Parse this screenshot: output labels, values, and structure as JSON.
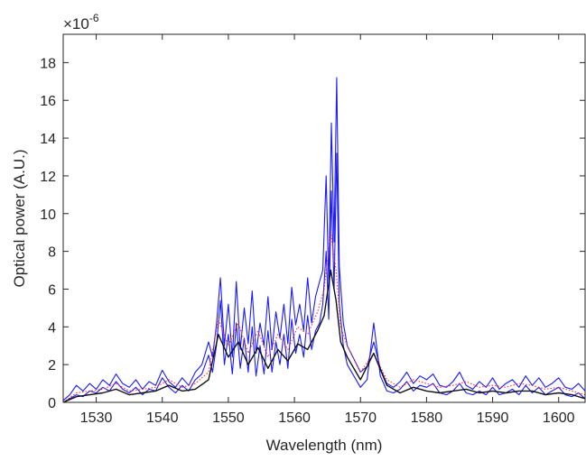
{
  "chart_data": {
    "type": "line",
    "title": "",
    "xlabel": "Wavelength (nm)",
    "ylabel": "Optical power (A.U.)",
    "y_exponent_label": "×10",
    "y_exponent_power": "-6",
    "xlim": [
      1525,
      1604
    ],
    "ylim": [
      0,
      19.5
    ],
    "xticks": [
      1530,
      1540,
      1550,
      1560,
      1570,
      1580,
      1590,
      1600
    ],
    "yticks": [
      0,
      2,
      4,
      6,
      8,
      10,
      12,
      14,
      16,
      18
    ],
    "grid": false,
    "legend": "none",
    "colors": {
      "blue": "#1a1aff",
      "red": "#ff2a2a",
      "black": "#111111",
      "axis": "#262626"
    },
    "series": [
      {
        "color": "blue",
        "style": "solid",
        "x": [
          1525,
          1526,
          1527,
          1528,
          1529,
          1530,
          1531,
          1532,
          1533,
          1534,
          1535,
          1536,
          1537,
          1538,
          1539,
          1540,
          1541,
          1542,
          1543,
          1544,
          1545,
          1546,
          1547,
          1547.6,
          1548.2,
          1548.8,
          1549.4,
          1550,
          1550.6,
          1551.2,
          1551.8,
          1552.4,
          1553,
          1553.6,
          1554.2,
          1554.8,
          1555.4,
          1556,
          1556.6,
          1557.2,
          1557.8,
          1558.4,
          1559,
          1559.6,
          1560.2,
          1560.8,
          1561.4,
          1562,
          1562.6,
          1563.2,
          1563.8,
          1564.3,
          1564.8,
          1565.2,
          1565.6,
          1566,
          1566.4,
          1566.8,
          1567.4,
          1568,
          1569,
          1570,
          1571,
          1572,
          1573,
          1574,
          1575,
          1576,
          1577,
          1578,
          1579,
          1580,
          1581,
          1582,
          1583,
          1584,
          1585,
          1586,
          1587,
          1588,
          1589,
          1590,
          1591,
          1592,
          1593,
          1594,
          1595,
          1596,
          1597,
          1598,
          1599,
          1600,
          1601,
          1602,
          1603,
          1604
        ],
        "y": [
          0.1,
          0.4,
          0.9,
          0.6,
          1.0,
          0.7,
          1.2,
          0.9,
          1.5,
          1.0,
          0.8,
          1.2,
          0.7,
          1.1,
          0.9,
          1.7,
          1.1,
          0.8,
          1.3,
          0.9,
          1.6,
          2.0,
          3.2,
          2.4,
          4.1,
          6.6,
          3.0,
          5.2,
          2.4,
          6.4,
          2.8,
          5.0,
          3.1,
          5.9,
          2.6,
          4.2,
          3.0,
          5.6,
          2.8,
          4.8,
          3.4,
          5.2,
          3.1,
          6.1,
          4.1,
          5.2,
          3.8,
          6.6,
          4.2,
          5.6,
          6.4,
          7.0,
          12.0,
          6.2,
          14.8,
          8.5,
          17.2,
          7.2,
          4.2,
          3.0,
          2.3,
          1.6,
          1.9,
          3.2,
          1.8,
          1.0,
          0.8,
          1.1,
          1.6,
          1.0,
          1.4,
          1.2,
          1.5,
          0.9,
          0.8,
          1.1,
          1.6,
          0.9,
          0.7,
          1.1,
          0.8,
          1.3,
          0.7,
          1.0,
          1.2,
          0.8,
          1.4,
          0.9,
          1.3,
          0.8,
          1.0,
          1.3,
          0.8,
          0.7,
          1.0,
          0.6
        ]
      },
      {
        "color": "blue",
        "style": "solid",
        "x": [
          1525,
          1526,
          1527,
          1528,
          1529,
          1530,
          1531,
          1532,
          1533,
          1534,
          1535,
          1536,
          1537,
          1538,
          1539,
          1540,
          1541,
          1542,
          1543,
          1544,
          1545,
          1546,
          1547,
          1547.6,
          1548.2,
          1548.8,
          1549.4,
          1550,
          1550.6,
          1551.2,
          1551.8,
          1552.4,
          1553,
          1553.6,
          1554.2,
          1554.8,
          1555.4,
          1556,
          1556.6,
          1557.2,
          1557.8,
          1558.4,
          1559,
          1559.6,
          1560.2,
          1560.8,
          1561.4,
          1562,
          1562.6,
          1563.2,
          1563.8,
          1564.3,
          1564.8,
          1565.2,
          1565.6,
          1566,
          1566.4,
          1566.8,
          1567.4,
          1568,
          1569,
          1570,
          1571,
          1572,
          1573,
          1574,
          1575,
          1576,
          1577,
          1578,
          1579,
          1580,
          1581,
          1582,
          1583,
          1584,
          1585,
          1586,
          1587,
          1588,
          1589,
          1590,
          1591,
          1592,
          1593,
          1594,
          1595,
          1596,
          1597,
          1598,
          1599,
          1600,
          1601,
          1602,
          1603,
          1604
        ],
        "y": [
          0.0,
          0.2,
          0.4,
          0.3,
          0.6,
          0.5,
          0.8,
          0.6,
          1.1,
          0.7,
          0.5,
          0.8,
          0.4,
          0.7,
          0.6,
          1.3,
          0.8,
          0.5,
          0.9,
          0.6,
          1.2,
          1.5,
          2.5,
          1.6,
          3.0,
          5.4,
          2.0,
          3.6,
          1.5,
          4.2,
          1.8,
          3.4,
          1.6,
          4.0,
          1.4,
          3.0,
          1.5,
          3.8,
          1.6,
          3.2,
          2.0,
          3.6,
          1.8,
          4.4,
          2.6,
          3.6,
          2.4,
          4.6,
          2.8,
          3.8,
          4.2,
          5.2,
          8.0,
          4.4,
          11.2,
          6.0,
          13.2,
          5.2,
          3.0,
          2.0,
          1.4,
          0.8,
          1.2,
          4.2,
          1.4,
          0.6,
          0.5,
          0.7,
          1.1,
          0.6,
          0.9,
          0.8,
          1.0,
          0.5,
          0.4,
          0.6,
          1.0,
          0.5,
          0.4,
          0.6,
          0.4,
          0.8,
          0.4,
          0.5,
          0.7,
          0.4,
          0.9,
          0.5,
          0.8,
          0.4,
          0.6,
          0.8,
          0.4,
          0.3,
          0.5,
          0.2
        ]
      },
      {
        "color": "red",
        "style": "dotted",
        "x": [
          1525,
          1527,
          1529,
          1531,
          1533,
          1535,
          1537,
          1539,
          1541,
          1543,
          1545,
          1547,
          1548.5,
          1550,
          1551.5,
          1553,
          1554.5,
          1556,
          1557.5,
          1559,
          1560.5,
          1562,
          1563.5,
          1564.5,
          1565.5,
          1566.3,
          1567,
          1568,
          1570,
          1572,
          1574,
          1576,
          1578,
          1580,
          1582,
          1584,
          1586,
          1588,
          1590,
          1592,
          1594,
          1596,
          1598,
          1600,
          1602,
          1604
        ],
        "y": [
          0.0,
          0.5,
          0.6,
          0.7,
          1.0,
          0.6,
          0.7,
          0.8,
          1.2,
          0.8,
          1.0,
          1.6,
          4.4,
          3.0,
          4.2,
          2.6,
          3.8,
          2.4,
          3.6,
          2.8,
          4.0,
          3.6,
          4.8,
          6.0,
          9.0,
          7.0,
          4.0,
          3.0,
          1.6,
          2.6,
          1.2,
          0.8,
          1.2,
          1.0,
          0.8,
          0.9,
          1.1,
          0.8,
          0.9,
          0.8,
          1.0,
          0.9,
          0.7,
          0.8,
          0.6,
          0.4
        ]
      },
      {
        "color": "black",
        "style": "solid",
        "x": [
          1525,
          1527,
          1529,
          1531,
          1533,
          1535,
          1537,
          1539,
          1541,
          1543,
          1545,
          1547,
          1548.5,
          1550,
          1551.5,
          1553,
          1554.5,
          1556,
          1557.5,
          1559,
          1560.5,
          1562,
          1563.5,
          1564.5,
          1565.5,
          1566.3,
          1567,
          1568,
          1570,
          1572,
          1574,
          1576,
          1578,
          1580,
          1582,
          1584,
          1586,
          1588,
          1590,
          1592,
          1594,
          1596,
          1598,
          1600,
          1602,
          1604
        ],
        "y": [
          0.0,
          0.3,
          0.4,
          0.5,
          0.7,
          0.4,
          0.5,
          0.6,
          0.9,
          0.6,
          0.7,
          1.2,
          3.6,
          2.4,
          3.2,
          2.0,
          2.9,
          1.8,
          2.8,
          2.2,
          3.1,
          2.8,
          3.8,
          4.6,
          7.0,
          5.4,
          3.2,
          2.4,
          1.2,
          2.6,
          0.9,
          0.5,
          0.8,
          0.6,
          0.5,
          0.6,
          0.7,
          0.5,
          0.6,
          0.5,
          0.6,
          0.6,
          0.4,
          0.5,
          0.4,
          0.2
        ]
      }
    ]
  }
}
